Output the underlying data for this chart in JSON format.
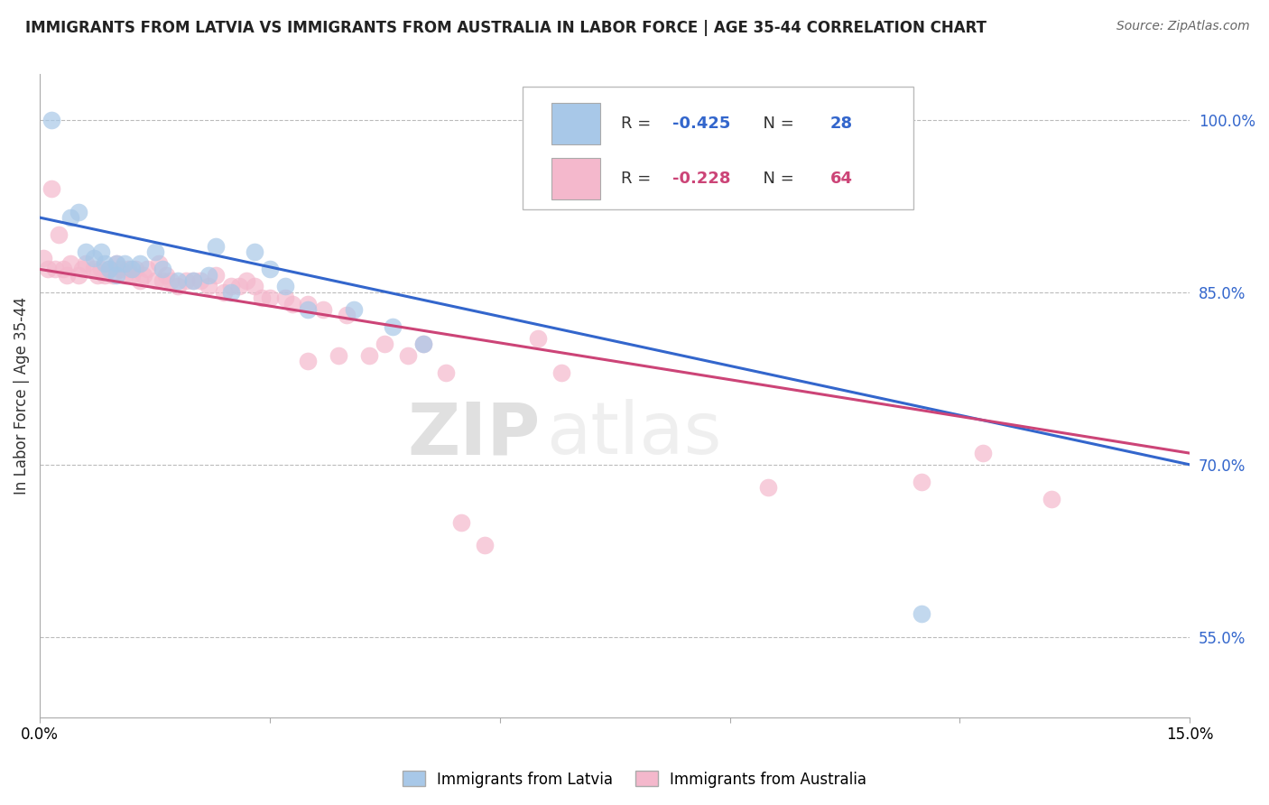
{
  "title": "IMMIGRANTS FROM LATVIA VS IMMIGRANTS FROM AUSTRALIA IN LABOR FORCE | AGE 35-44 CORRELATION CHART",
  "source": "Source: ZipAtlas.com",
  "ylabel": "In Labor Force | Age 35-44",
  "xlim": [
    0.0,
    15.0
  ],
  "ylim": [
    48.0,
    104.0
  ],
  "yticks": [
    55.0,
    70.0,
    85.0,
    100.0
  ],
  "xticks": [
    0.0,
    3.0,
    6.0,
    9.0,
    12.0,
    15.0
  ],
  "xtick_labels": [
    "0.0%",
    "",
    "",
    "",
    "",
    "15.0%"
  ],
  "ytick_labels": [
    "55.0%",
    "70.0%",
    "85.0%",
    "100.0%"
  ],
  "latvia_color": "#a8c8e8",
  "australia_color": "#f4b8cc",
  "latvia_line_color": "#3366cc",
  "australia_line_color": "#cc4477",
  "r_latvia": -0.425,
  "n_latvia": 28,
  "r_australia": -0.228,
  "n_australia": 64,
  "watermark_zip": "ZIP",
  "watermark_atlas": "atlas",
  "background_color": "#ffffff",
  "grid_color": "#bbbbbb",
  "latvia_line": [
    0.0,
    91.5,
    15.0,
    70.0
  ],
  "australia_line": [
    0.0,
    87.0,
    15.0,
    71.0
  ],
  "latvia_scatter": [
    [
      0.15,
      100.0
    ],
    [
      0.4,
      91.5
    ],
    [
      0.5,
      92.0
    ],
    [
      0.6,
      88.5
    ],
    [
      0.7,
      88.0
    ],
    [
      0.8,
      88.5
    ],
    [
      0.85,
      87.5
    ],
    [
      0.9,
      87.0
    ],
    [
      1.0,
      87.5
    ],
    [
      1.0,
      86.5
    ],
    [
      1.1,
      87.5
    ],
    [
      1.2,
      87.0
    ],
    [
      1.3,
      87.5
    ],
    [
      1.5,
      88.5
    ],
    [
      1.6,
      87.0
    ],
    [
      1.8,
      86.0
    ],
    [
      2.0,
      86.0
    ],
    [
      2.2,
      86.5
    ],
    [
      2.3,
      89.0
    ],
    [
      2.5,
      85.0
    ],
    [
      2.8,
      88.5
    ],
    [
      3.0,
      87.0
    ],
    [
      3.2,
      85.5
    ],
    [
      3.5,
      83.5
    ],
    [
      4.1,
      83.5
    ],
    [
      4.6,
      82.0
    ],
    [
      5.0,
      80.5
    ],
    [
      11.5,
      57.0
    ]
  ],
  "australia_scatter": [
    [
      0.05,
      88.0
    ],
    [
      0.1,
      87.0
    ],
    [
      0.15,
      94.0
    ],
    [
      0.2,
      87.0
    ],
    [
      0.25,
      90.0
    ],
    [
      0.3,
      87.0
    ],
    [
      0.35,
      86.5
    ],
    [
      0.4,
      87.5
    ],
    [
      0.5,
      86.5
    ],
    [
      0.55,
      87.0
    ],
    [
      0.6,
      87.5
    ],
    [
      0.7,
      87.0
    ],
    [
      0.75,
      86.5
    ],
    [
      0.8,
      87.0
    ],
    [
      0.85,
      86.5
    ],
    [
      0.9,
      87.0
    ],
    [
      0.95,
      86.5
    ],
    [
      1.0,
      87.5
    ],
    [
      1.05,
      87.0
    ],
    [
      1.1,
      86.5
    ],
    [
      1.15,
      87.0
    ],
    [
      1.2,
      86.5
    ],
    [
      1.25,
      87.0
    ],
    [
      1.3,
      86.0
    ],
    [
      1.35,
      86.5
    ],
    [
      1.4,
      87.0
    ],
    [
      1.5,
      86.0
    ],
    [
      1.55,
      87.5
    ],
    [
      1.6,
      86.0
    ],
    [
      1.65,
      86.5
    ],
    [
      1.7,
      86.0
    ],
    [
      1.8,
      85.5
    ],
    [
      1.9,
      86.0
    ],
    [
      2.0,
      86.0
    ],
    [
      2.1,
      86.0
    ],
    [
      2.2,
      85.5
    ],
    [
      2.3,
      86.5
    ],
    [
      2.4,
      85.0
    ],
    [
      2.5,
      85.5
    ],
    [
      2.6,
      85.5
    ],
    [
      2.7,
      86.0
    ],
    [
      2.8,
      85.5
    ],
    [
      2.9,
      84.5
    ],
    [
      3.0,
      84.5
    ],
    [
      3.2,
      84.5
    ],
    [
      3.3,
      84.0
    ],
    [
      3.5,
      84.0
    ],
    [
      3.5,
      79.0
    ],
    [
      3.7,
      83.5
    ],
    [
      3.9,
      79.5
    ],
    [
      4.0,
      83.0
    ],
    [
      4.3,
      79.5
    ],
    [
      4.5,
      80.5
    ],
    [
      4.8,
      79.5
    ],
    [
      5.0,
      80.5
    ],
    [
      5.3,
      78.0
    ],
    [
      5.5,
      65.0
    ],
    [
      5.8,
      63.0
    ],
    [
      6.5,
      81.0
    ],
    [
      6.8,
      78.0
    ],
    [
      9.5,
      68.0
    ],
    [
      11.5,
      68.5
    ],
    [
      12.3,
      71.0
    ],
    [
      13.2,
      67.0
    ]
  ]
}
